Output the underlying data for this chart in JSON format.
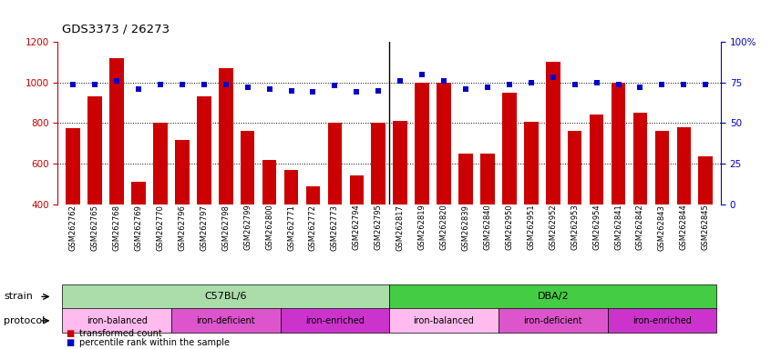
{
  "title": "GDS3373 / 26273",
  "samples": [
    "GSM262762",
    "GSM262765",
    "GSM262768",
    "GSM262769",
    "GSM262770",
    "GSM262796",
    "GSM262797",
    "GSM262798",
    "GSM262799",
    "GSM262800",
    "GSM262771",
    "GSM262772",
    "GSM262773",
    "GSM262794",
    "GSM262795",
    "GSM262817",
    "GSM262819",
    "GSM262820",
    "GSM262839",
    "GSM262840",
    "GSM262950",
    "GSM262951",
    "GSM262952",
    "GSM262953",
    "GSM262954",
    "GSM262841",
    "GSM262842",
    "GSM262843",
    "GSM262844",
    "GSM262845"
  ],
  "bar_values": [
    775,
    930,
    1120,
    510,
    800,
    715,
    930,
    1070,
    760,
    620,
    570,
    490,
    800,
    540,
    800,
    810,
    1000,
    1000,
    650,
    650,
    950,
    805,
    1100,
    760,
    840,
    1000,
    850,
    760,
    780,
    635
  ],
  "percentile_values": [
    74,
    74,
    76,
    71,
    74,
    74,
    74,
    74,
    72,
    71,
    70,
    69,
    73,
    69,
    70,
    76,
    80,
    76,
    71,
    72,
    74,
    75,
    78,
    74,
    75,
    74,
    72,
    74,
    74,
    74
  ],
  "bar_color": "#cc0000",
  "percentile_color": "#0000cc",
  "ylim_left": [
    400,
    1200
  ],
  "ylim_right": [
    0,
    100
  ],
  "yticks_left": [
    400,
    600,
    800,
    1000,
    1200
  ],
  "yticks_right": [
    0,
    25,
    50,
    75,
    100
  ],
  "grid_values": [
    600,
    800,
    1000
  ],
  "strain_groups": [
    {
      "label": "C57BL/6",
      "start": 0,
      "end": 15,
      "color": "#aaddaa"
    },
    {
      "label": "DBA/2",
      "start": 15,
      "end": 30,
      "color": "#44cc44"
    }
  ],
  "protocol_groups": [
    {
      "label": "iron-balanced",
      "start": 0,
      "end": 5,
      "color": "#ffbbee"
    },
    {
      "label": "iron-deficient",
      "start": 5,
      "end": 10,
      "color": "#dd55cc"
    },
    {
      "label": "iron-enriched",
      "start": 10,
      "end": 15,
      "color": "#cc33cc"
    },
    {
      "label": "iron-balanced",
      "start": 15,
      "end": 20,
      "color": "#ffbbee"
    },
    {
      "label": "iron-deficient",
      "start": 20,
      "end": 25,
      "color": "#dd55cc"
    },
    {
      "label": "iron-enriched",
      "start": 25,
      "end": 30,
      "color": "#cc33cc"
    }
  ],
  "legend_bar_label": "transformed count",
  "legend_pct_label": "percentile rank within the sample",
  "strain_label": "strain",
  "protocol_label": "protocol",
  "xlim": [
    -0.7,
    29.7
  ]
}
